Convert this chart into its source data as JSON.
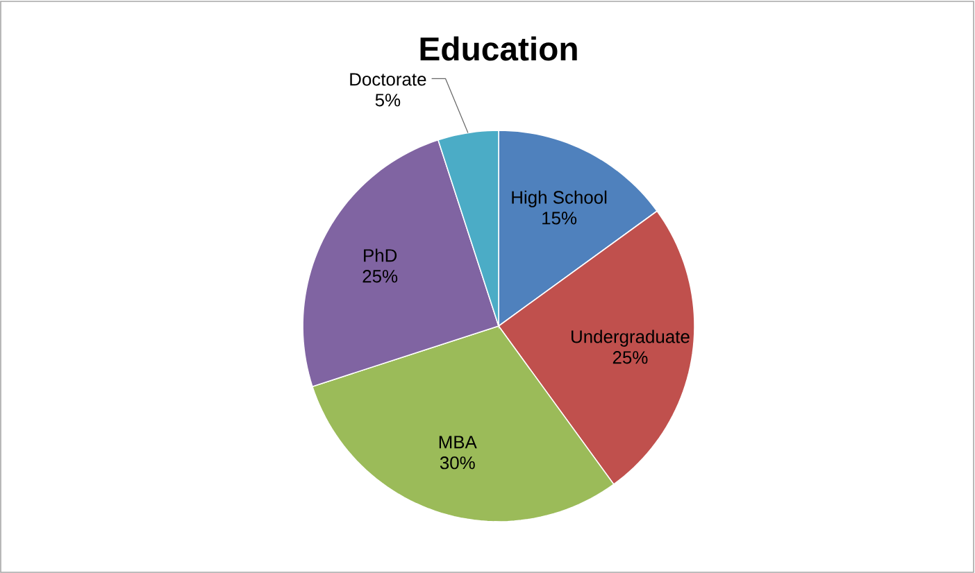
{
  "chart_data": {
    "type": "pie",
    "title": "Education",
    "categories": [
      "High School",
      "Undergraduate",
      "MBA",
      "PhD",
      "Doctorate"
    ],
    "values": [
      15,
      25,
      30,
      25,
      5
    ],
    "value_labels": [
      "15%",
      "25%",
      "30%",
      "25%",
      "5%"
    ],
    "colors": [
      "#4f81bd",
      "#c0504d",
      "#9bbb59",
      "#8064a2",
      "#4bacc6"
    ]
  }
}
